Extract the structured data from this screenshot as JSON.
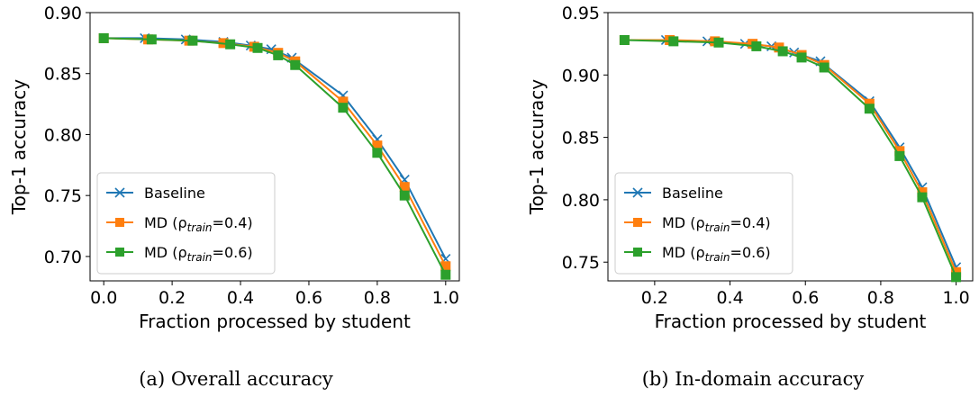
{
  "chart_data": [
    {
      "type": "line",
      "caption": "(a) Overall accuracy",
      "xlabel": "Fraction processed by student",
      "ylabel": "Top-1 accuracy",
      "xlim": [
        -0.04,
        1.04
      ],
      "ylim": [
        0.68,
        0.9
      ],
      "xticks": [
        0.0,
        0.2,
        0.4,
        0.6,
        0.8,
        1.0
      ],
      "xtick_labels": [
        "0.0",
        "0.2",
        "0.4",
        "0.6",
        "0.8",
        "1.0"
      ],
      "yticks": [
        0.7,
        0.75,
        0.8,
        0.85,
        0.9
      ],
      "ytick_labels": [
        "0.70",
        "0.75",
        "0.80",
        "0.85",
        "0.90"
      ],
      "grid": false,
      "legend_position": "lower-left",
      "series": [
        {
          "name": "Baseline",
          "label_prefix": "Baseline",
          "label_sub": "",
          "label_suffix": "",
          "color": "#1f77b4",
          "marker": "x",
          "x": [
            0.0,
            0.12,
            0.24,
            0.35,
            0.43,
            0.49,
            0.55,
            0.7,
            0.8,
            0.88,
            1.0
          ],
          "y": [
            0.879,
            0.879,
            0.878,
            0.876,
            0.873,
            0.87,
            0.863,
            0.832,
            0.796,
            0.763,
            0.698
          ]
        },
        {
          "name": "MD (ρtrain=0.4)",
          "label_prefix": "MD (ρ",
          "label_sub": "train",
          "label_suffix": "=0.4)",
          "color": "#ff7f0e",
          "marker": "s",
          "x": [
            0.0,
            0.13,
            0.25,
            0.35,
            0.44,
            0.51,
            0.56,
            0.7,
            0.8,
            0.88,
            1.0
          ],
          "y": [
            0.879,
            0.878,
            0.877,
            0.875,
            0.872,
            0.867,
            0.86,
            0.827,
            0.791,
            0.757,
            0.692
          ]
        },
        {
          "name": "MD (ρtrain=0.6)",
          "label_prefix": "MD (ρ",
          "label_sub": "train",
          "label_suffix": "=0.6)",
          "color": "#2ca02c",
          "marker": "s",
          "x": [
            0.0,
            0.14,
            0.26,
            0.37,
            0.45,
            0.51,
            0.56,
            0.7,
            0.8,
            0.88,
            1.0
          ],
          "y": [
            0.879,
            0.878,
            0.877,
            0.874,
            0.871,
            0.865,
            0.857,
            0.822,
            0.785,
            0.75,
            0.685
          ]
        }
      ]
    },
    {
      "type": "line",
      "caption": "(b) In-domain accuracy",
      "xlabel": "Fraction processed by student",
      "ylabel": "Top-1 accuracy",
      "xlim": [
        0.076,
        1.044
      ],
      "ylim": [
        0.735,
        0.95
      ],
      "xticks": [
        0.2,
        0.4,
        0.6,
        0.8,
        1.0
      ],
      "xtick_labels": [
        "0.2",
        "0.4",
        "0.6",
        "0.8",
        "1.0"
      ],
      "yticks": [
        0.75,
        0.8,
        0.85,
        0.9,
        0.95
      ],
      "ytick_labels": [
        "0.75",
        "0.80",
        "0.85",
        "0.90",
        "0.95"
      ],
      "grid": false,
      "legend_position": "lower-left",
      "series": [
        {
          "name": "Baseline",
          "label_prefix": "Baseline",
          "label_sub": "",
          "label_suffix": "",
          "color": "#1f77b4",
          "marker": "x",
          "x": [
            0.12,
            0.23,
            0.34,
            0.44,
            0.51,
            0.57,
            0.64,
            0.77,
            0.85,
            0.91,
            1.0
          ],
          "y": [
            0.928,
            0.928,
            0.927,
            0.925,
            0.923,
            0.918,
            0.911,
            0.879,
            0.842,
            0.81,
            0.746
          ]
        },
        {
          "name": "MD (ρtrain=0.4)",
          "label_prefix": "MD (ρ",
          "label_sub": "train",
          "label_suffix": "=0.4)",
          "color": "#ff7f0e",
          "marker": "s",
          "x": [
            0.12,
            0.24,
            0.36,
            0.46,
            0.53,
            0.59,
            0.65,
            0.77,
            0.85,
            0.91,
            1.0
          ],
          "y": [
            0.928,
            0.928,
            0.927,
            0.925,
            0.922,
            0.916,
            0.908,
            0.877,
            0.839,
            0.806,
            0.742
          ]
        },
        {
          "name": "MD (ρtrain=0.6)",
          "label_prefix": "MD (ρ",
          "label_sub": "train",
          "label_suffix": "=0.6)",
          "color": "#2ca02c",
          "marker": "s",
          "x": [
            0.12,
            0.25,
            0.37,
            0.47,
            0.54,
            0.59,
            0.65,
            0.77,
            0.85,
            0.91,
            1.0
          ],
          "y": [
            0.928,
            0.927,
            0.926,
            0.923,
            0.919,
            0.914,
            0.906,
            0.873,
            0.835,
            0.802,
            0.738
          ]
        }
      ]
    }
  ]
}
